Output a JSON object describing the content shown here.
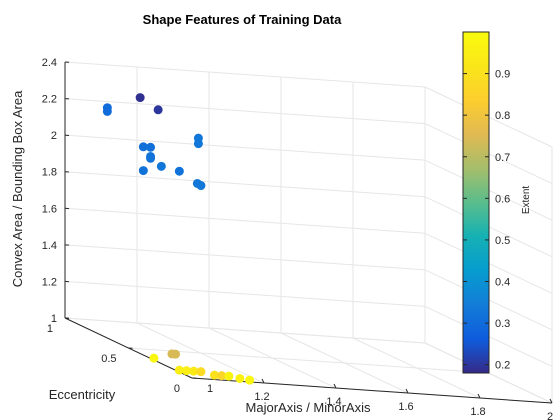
{
  "chart_data": {
    "type": "scatter3d",
    "title": "Shape Features of Training Data",
    "xlabel": "MajorAxis / MinorAxis",
    "ylabel": "Eccentricity",
    "zlabel": "Convex Area / Bounding Box Area",
    "colorbar_label": "Extent",
    "xlim": [
      1,
      2
    ],
    "ylim": [
      0,
      1
    ],
    "zlim": [
      1,
      2.4
    ],
    "x_ticks": [
      "1.2",
      "1.4",
      "1.6",
      "1.8",
      "2"
    ],
    "y_ticks": [
      "0",
      "0.5",
      "1"
    ],
    "z_ticks": [
      "1",
      "1.2",
      "1.4",
      "1.6",
      "1.8",
      "2",
      "2.2",
      "2.4"
    ],
    "colorbar_ticks": [
      "0.2",
      "0.3",
      "0.4",
      "0.5",
      "0.6",
      "0.7",
      "0.8",
      "0.9"
    ],
    "colorbar_range": [
      0.18,
      1.0
    ],
    "colormap": "parula",
    "grid": true,
    "points": [
      {
        "x": 1.05,
        "y": 0.55,
        "z": 2.36,
        "c": 0.19
      },
      {
        "x": 1.1,
        "y": 0.55,
        "z": 2.3,
        "c": 0.2
      },
      {
        "x": 1.1,
        "y": 0.95,
        "z": 2.18,
        "c": 0.3
      },
      {
        "x": 1.1,
        "y": 0.95,
        "z": 2.16,
        "c": 0.3
      },
      {
        "x": 1.3,
        "y": 0.8,
        "z": 2.09,
        "c": 0.33
      },
      {
        "x": 1.3,
        "y": 0.8,
        "z": 2.06,
        "c": 0.33
      },
      {
        "x": 1.2,
        "y": 0.95,
        "z": 1.98,
        "c": 0.31
      },
      {
        "x": 1.22,
        "y": 0.95,
        "z": 1.98,
        "c": 0.31
      },
      {
        "x": 1.22,
        "y": 0.95,
        "z": 1.93,
        "c": 0.32
      },
      {
        "x": 1.22,
        "y": 0.95,
        "z": 1.92,
        "c": 0.32
      },
      {
        "x": 1.25,
        "y": 0.95,
        "z": 1.88,
        "c": 0.33
      },
      {
        "x": 1.2,
        "y": 0.95,
        "z": 1.85,
        "c": 0.32
      },
      {
        "x": 1.3,
        "y": 0.95,
        "z": 1.86,
        "c": 0.32
      },
      {
        "x": 1.35,
        "y": 0.95,
        "z": 1.8,
        "c": 0.33
      },
      {
        "x": 1.36,
        "y": 0.95,
        "z": 1.79,
        "c": 0.33
      },
      {
        "x": 1.05,
        "y": 0.3,
        "z": 1.04,
        "c": 0.74
      },
      {
        "x": 1.06,
        "y": 0.3,
        "z": 1.04,
        "c": 0.74
      },
      {
        "x": 1.0,
        "y": 0.3,
        "z": 1.01,
        "c": 0.98
      },
      {
        "x": 1.0,
        "y": 0.1,
        "z": 1.01,
        "c": 0.95
      },
      {
        "x": 1.02,
        "y": 0.1,
        "z": 1.01,
        "c": 0.95
      },
      {
        "x": 1.04,
        "y": 0.1,
        "z": 1.01,
        "c": 0.93
      },
      {
        "x": 1.06,
        "y": 0.1,
        "z": 1.01,
        "c": 0.88
      },
      {
        "x": 1.08,
        "y": 0.05,
        "z": 1.01,
        "c": 0.9
      },
      {
        "x": 1.1,
        "y": 0.05,
        "z": 1.01,
        "c": 0.86
      },
      {
        "x": 1.12,
        "y": 0.05,
        "z": 1.01,
        "c": 0.97
      },
      {
        "x": 1.14,
        "y": 0.02,
        "z": 1.01,
        "c": 0.96
      },
      {
        "x": 1.16,
        "y": 0.0,
        "z": 1.01,
        "c": 0.98
      }
    ]
  }
}
